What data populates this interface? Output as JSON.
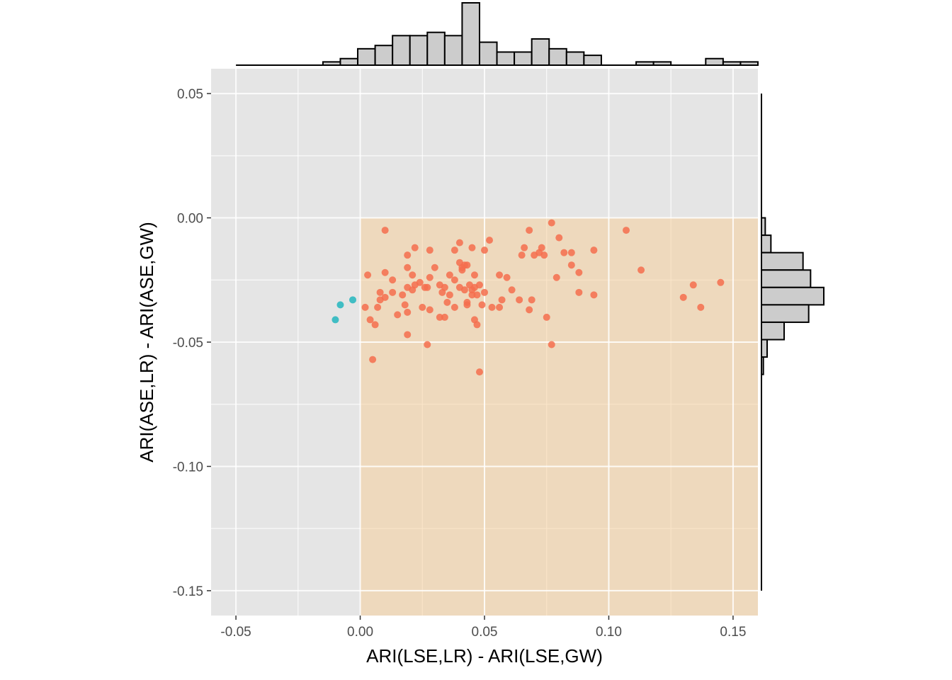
{
  "chart_data": {
    "type": "scatter",
    "title": "",
    "xlabel": "ARI(LSE,LR) - ARI(LSE,GW)",
    "ylabel": "ARI(ASE,LR) - ARI(ASE,GW)",
    "xlim": [
      -0.06,
      0.16
    ],
    "ylim": [
      -0.16,
      0.06
    ],
    "x_ticks": [
      -0.05,
      0.0,
      0.05,
      0.1,
      0.15
    ],
    "x_tick_labels": [
      "-0.05",
      "0.00",
      "0.05",
      "0.10",
      "0.15"
    ],
    "y_ticks": [
      0.05,
      0.0,
      -0.05,
      -0.1,
      -0.15
    ],
    "y_tick_labels": [
      "0.05",
      "0.00",
      "-0.05",
      "-0.10",
      "-0.15"
    ],
    "grid": true,
    "legend": "none",
    "colors": {
      "panel_bg": "#e5e5e5",
      "grid": "#ffffff",
      "region_fill": "#f5cf9c",
      "region_opacity": 0.55,
      "point_positive": "#f46d4e",
      "point_negative": "#23b6be",
      "hist_fill": "#cccccc",
      "hist_stroke": "#000000"
    },
    "shaded_region": {
      "x": [
        0.0,
        0.16
      ],
      "y": [
        -0.16,
        0.0
      ]
    },
    "series": [
      {
        "color_key": "point_positive",
        "points": [
          [
            0.01,
            -0.005
          ],
          [
            0.022,
            -0.012
          ],
          [
            0.028,
            -0.013
          ],
          [
            0.04,
            -0.01
          ],
          [
            0.045,
            -0.012
          ],
          [
            0.05,
            -0.013
          ],
          [
            0.052,
            -0.009
          ],
          [
            0.065,
            -0.015
          ],
          [
            0.068,
            -0.005
          ],
          [
            0.07,
            -0.015
          ],
          [
            0.072,
            -0.014
          ],
          [
            0.073,
            -0.012
          ],
          [
            0.074,
            -0.015
          ],
          [
            0.077,
            -0.002
          ],
          [
            0.08,
            -0.008
          ],
          [
            0.082,
            -0.014
          ],
          [
            0.085,
            -0.014
          ],
          [
            0.094,
            -0.013
          ],
          [
            0.107,
            -0.005
          ],
          [
            0.003,
            -0.023
          ],
          [
            0.01,
            -0.022
          ],
          [
            0.013,
            -0.025
          ],
          [
            0.019,
            -0.02
          ],
          [
            0.019,
            -0.015
          ],
          [
            0.021,
            -0.023
          ],
          [
            0.022,
            -0.027
          ],
          [
            0.024,
            -0.026
          ],
          [
            0.026,
            -0.028
          ],
          [
            0.028,
            -0.024
          ],
          [
            0.03,
            -0.02
          ],
          [
            0.032,
            -0.027
          ],
          [
            0.034,
            -0.028
          ],
          [
            0.036,
            -0.023
          ],
          [
            0.038,
            -0.025
          ],
          [
            0.038,
            -0.013
          ],
          [
            0.04,
            -0.018
          ],
          [
            0.041,
            -0.021
          ],
          [
            0.041,
            -0.02
          ],
          [
            0.042,
            -0.019
          ],
          [
            0.043,
            -0.019
          ],
          [
            0.044,
            -0.027
          ],
          [
            0.046,
            -0.028
          ],
          [
            0.046,
            -0.023
          ],
          [
            0.048,
            -0.027
          ],
          [
            0.056,
            -0.023
          ],
          [
            0.059,
            -0.024
          ],
          [
            0.066,
            -0.012
          ],
          [
            0.079,
            -0.024
          ],
          [
            0.085,
            -0.019
          ],
          [
            0.088,
            -0.022
          ],
          [
            0.008,
            -0.03
          ],
          [
            0.007,
            -0.036
          ],
          [
            0.008,
            -0.033
          ],
          [
            0.01,
            -0.032
          ],
          [
            0.013,
            -0.03
          ],
          [
            0.017,
            -0.031
          ],
          [
            0.019,
            -0.028
          ],
          [
            0.021,
            -0.029
          ],
          [
            0.025,
            -0.036
          ],
          [
            0.027,
            -0.028
          ],
          [
            0.032,
            -0.04
          ],
          [
            0.033,
            -0.03
          ],
          [
            0.035,
            -0.034
          ],
          [
            0.036,
            -0.031
          ],
          [
            0.04,
            -0.028
          ],
          [
            0.042,
            -0.029
          ],
          [
            0.043,
            -0.034
          ],
          [
            0.045,
            -0.031
          ],
          [
            0.045,
            -0.029
          ],
          [
            0.047,
            -0.031
          ],
          [
            0.049,
            -0.035
          ],
          [
            0.05,
            -0.03
          ],
          [
            0.053,
            -0.036
          ],
          [
            0.056,
            -0.036
          ],
          [
            0.057,
            -0.033
          ],
          [
            0.061,
            -0.029
          ],
          [
            0.064,
            -0.033
          ],
          [
            0.068,
            -0.037
          ],
          [
            0.069,
            -0.033
          ],
          [
            0.088,
            -0.03
          ],
          [
            0.094,
            -0.031
          ],
          [
            0.13,
            -0.032
          ],
          [
            0.134,
            -0.027
          ],
          [
            0.137,
            -0.036
          ],
          [
            0.145,
            -0.026
          ],
          [
            0.113,
            -0.021
          ],
          [
            0.002,
            -0.036
          ],
          [
            0.004,
            -0.041
          ],
          [
            0.006,
            -0.043
          ],
          [
            0.015,
            -0.039
          ],
          [
            0.018,
            -0.035
          ],
          [
            0.019,
            -0.038
          ],
          [
            0.028,
            -0.037
          ],
          [
            0.034,
            -0.04
          ],
          [
            0.038,
            -0.036
          ],
          [
            0.043,
            -0.035
          ],
          [
            0.046,
            -0.041
          ],
          [
            0.047,
            -0.043
          ],
          [
            0.075,
            -0.04
          ],
          [
            0.077,
            -0.051
          ],
          [
            0.019,
            -0.047
          ],
          [
            0.027,
            -0.051
          ],
          [
            0.005,
            -0.057
          ],
          [
            0.048,
            -0.062
          ]
        ]
      },
      {
        "color_key": "point_negative",
        "points": [
          [
            -0.003,
            -0.033
          ],
          [
            -0.008,
            -0.035
          ],
          [
            -0.01,
            -0.041
          ]
        ]
      }
    ],
    "x_histogram": {
      "bin_start": -0.05,
      "bin_width": 0.007,
      "counts": [
        0,
        0,
        0,
        0,
        0,
        1,
        2,
        5,
        6,
        9,
        9,
        10,
        9,
        19,
        7,
        4,
        4,
        8,
        5,
        4,
        3,
        0,
        0,
        1,
        1,
        0,
        0,
        2,
        1,
        1
      ]
    },
    "y_histogram": {
      "bins": [
        0.0,
        -0.007,
        -0.014,
        -0.021,
        -0.028,
        -0.035,
        -0.042,
        -0.049,
        -0.056
      ],
      "bin_width": 0.007,
      "counts": [
        2,
        5,
        22,
        26,
        33,
        25,
        12,
        3,
        1
      ]
    }
  }
}
